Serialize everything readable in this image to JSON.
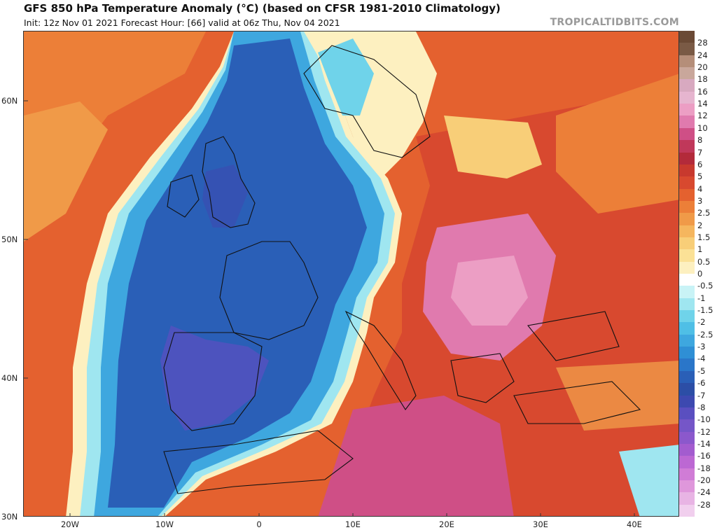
{
  "header": {
    "title": "GFS 850 hPa Temperature Anomaly (°C) (based on CFSR 1981-2010 Climatology)",
    "subtitle": "Init: 12z Nov 01 2021   Forecast Hour: [66]   valid at 06z Thu, Nov 04 2021",
    "brand": "TROPICALTIDBITS.COM"
  },
  "map": {
    "lat_labels": [
      "60N",
      "50N",
      "40N",
      "30N"
    ],
    "lon_labels": [
      "20W",
      "10W",
      "0",
      "10E",
      "20E",
      "30E",
      "40E"
    ]
  },
  "colorbar": {
    "labels": [
      "28",
      "24",
      "20",
      "18",
      "16",
      "14",
      "12",
      "10",
      "8",
      "7",
      "6",
      "5",
      "4",
      "3",
      "2.5",
      "2",
      "1.5",
      "1",
      "0.5",
      "0",
      "-0.5",
      "-1",
      "-1.5",
      "-2",
      "-2.5",
      "-3",
      "-4",
      "-5",
      "-6",
      "-7",
      "-8",
      "-10",
      "-12",
      "-14",
      "-16",
      "-18",
      "-20",
      "-24",
      "-28"
    ],
    "colors": [
      "#7a5a45",
      "#b58e79",
      "#c9a79b",
      "#d8a9c0",
      "#e6b5cf",
      "#ec9ec4",
      "#e07aae",
      "#cf4f86",
      "#c0385a",
      "#b32a3a",
      "#c8392e",
      "#d8492f",
      "#e4612f",
      "#ec7f38",
      "#f09a48",
      "#f5b65e",
      "#f8ce78",
      "#fbe196",
      "#fdf0c0",
      "#ffffff",
      "#c9f3f6",
      "#9fe6f0",
      "#6fd3ea",
      "#4fbfe6",
      "#3ea7df",
      "#2f8fd5",
      "#2a76c9",
      "#2a5fb7",
      "#2c4ea6",
      "#3d49b0",
      "#5a4fc0",
      "#7556c8",
      "#8b58cc",
      "#a35ccf",
      "#bc68d3",
      "#d07cd6",
      "#df97db",
      "#e8b4e4",
      "#f1cfee"
    ]
  }
}
